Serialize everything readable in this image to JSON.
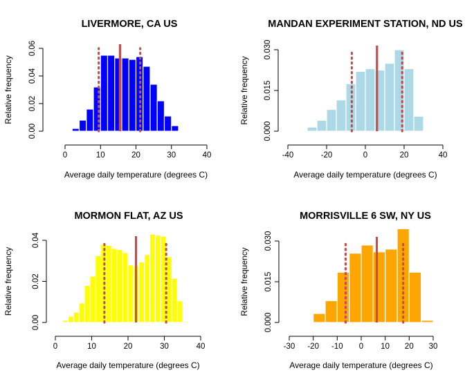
{
  "chart_data": [
    {
      "type": "histogram",
      "title": "LIVERMORE, CA US",
      "xlabel": "Average daily temperature (degrees C)",
      "ylabel": "Relative frequency",
      "xlim": [
        0,
        40
      ],
      "xticks": [
        "0",
        "10",
        "20",
        "30",
        "40"
      ],
      "ylim": [
        0,
        0.06
      ],
      "yticks": [
        "0.00",
        "0.02",
        "0.04",
        "0.06"
      ],
      "bar_color": "#0000ff",
      "bin_start": 0,
      "bin_width": 2,
      "values": [
        0.0005,
        0.002,
        0.008,
        0.016,
        0.032,
        0.055,
        0.055,
        0.053,
        0.053,
        0.052,
        0.054,
        0.047,
        0.034,
        0.022,
        0.011,
        0.004
      ],
      "mean_line": {
        "x": 15.5,
        "color": "#c0504d",
        "style": "solid"
      },
      "percentile_lines": [
        {
          "x": 9.5,
          "color": "#c0504d",
          "style": "dotted"
        },
        {
          "x": 21.2,
          "color": "#c0504d",
          "style": "dotted"
        }
      ]
    },
    {
      "type": "histogram",
      "title": "MANDAN EXPERIMENT STATION, ND US",
      "xlabel": "Average daily temperature (degrees C)",
      "ylabel": "Relative frequency",
      "xlim": [
        -40,
        40
      ],
      "xticks": [
        "-40",
        "-20",
        "0",
        "20",
        "40"
      ],
      "ylim": [
        0,
        0.03
      ],
      "yticks": [
        "0.000",
        "0.015",
        "0.030"
      ],
      "bar_color": "#add8e6",
      "bin_start": -30,
      "bin_width": 5,
      "values": [
        0.0015,
        0.004,
        0.008,
        0.0115,
        0.0175,
        0.022,
        0.023,
        0.0225,
        0.025,
        0.03,
        0.023,
        0.0055
      ],
      "mean_line": {
        "x": 6,
        "color": "#c0504d",
        "style": "solid"
      },
      "percentile_lines": [
        {
          "x": -7,
          "color": "#c0504d",
          "style": "dotted"
        },
        {
          "x": 19,
          "color": "#c0504d",
          "style": "dotted"
        }
      ]
    },
    {
      "type": "histogram",
      "title": "MORMON FLAT, AZ US",
      "xlabel": "Average daily temperature (degrees C)",
      "ylabel": "Relative frequency",
      "xlim": [
        0,
        40
      ],
      "xticks": [
        "0",
        "10",
        "20",
        "30",
        "40"
      ],
      "ylim": [
        0,
        0.04
      ],
      "yticks": [
        "0.00",
        "0.02",
        "0.04"
      ],
      "bar_color": "#ffff00",
      "bin_start": 2,
      "bin_width": 1.5,
      "values": [
        0.001,
        0.003,
        0.005,
        0.0095,
        0.018,
        0.0225,
        0.0325,
        0.038,
        0.0375,
        0.036,
        0.0355,
        0.034,
        0.028,
        0.0275,
        0.0295,
        0.033,
        0.043,
        0.0425,
        0.042,
        0.032,
        0.0215,
        0.0105,
        0.0005
      ],
      "mean_line": {
        "x": 22.2,
        "color": "#c0504d",
        "style": "solid"
      },
      "percentile_lines": [
        {
          "x": 13.5,
          "color": "#c0504d",
          "style": "dotted"
        },
        {
          "x": 30.5,
          "color": "#c0504d",
          "style": "dotted"
        }
      ]
    },
    {
      "type": "histogram",
      "title": "MORRISVILLE 6 SW, NY US",
      "xlabel": "Average daily temperature (degrees C)",
      "ylabel": "Relative frequency",
      "xlim": [
        -30,
        30
      ],
      "xticks": [
        "-30",
        "-20",
        "-10",
        "0",
        "10",
        "20",
        "30"
      ],
      "ylim": [
        0,
        0.03
      ],
      "yticks": [
        "0.000",
        "0.015",
        "0.030"
      ],
      "bar_color": "#ffa500",
      "bin_start": -25,
      "bin_width": 5,
      "values": [
        0.0003,
        0.0033,
        0.008,
        0.0185,
        0.0255,
        0.0285,
        0.026,
        0.027,
        0.0345,
        0.0185,
        0.0008
      ],
      "mean_line": {
        "x": 6.5,
        "color": "#c0504d",
        "style": "solid"
      },
      "percentile_lines": [
        {
          "x": -6.5,
          "color": "#c0504d",
          "style": "dotted"
        },
        {
          "x": 17.5,
          "color": "#c0504d",
          "style": "dotted"
        }
      ]
    }
  ]
}
